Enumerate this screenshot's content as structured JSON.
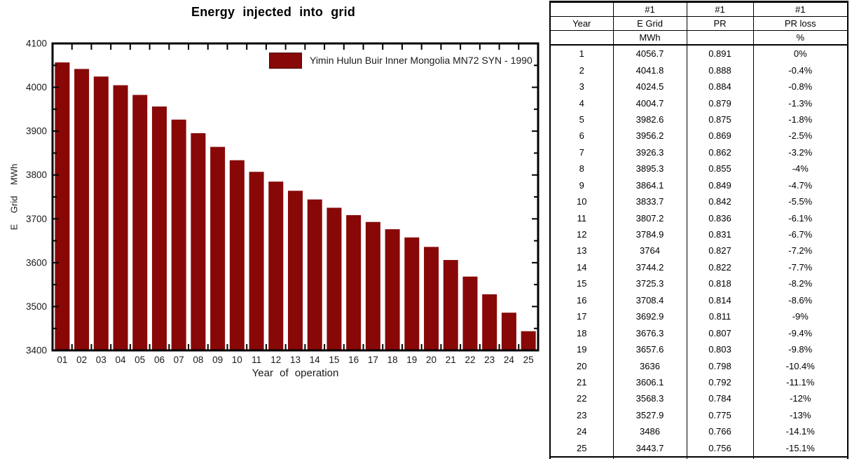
{
  "chart_data": {
    "type": "bar",
    "title": "Energy injected into grid",
    "xlabel": "Year of operation",
    "ylabel": "E Grid MWh",
    "ylim": [
      3400,
      4100
    ],
    "y_major_step": 100,
    "y_minor_step": 50,
    "grid": false,
    "legend_position": "top-inside",
    "bar_color": "#880808",
    "series_name": "Yimin Hulun Buir Inner Mongolia MN72 SYN - 1990",
    "categories": [
      "01",
      "02",
      "03",
      "04",
      "05",
      "06",
      "07",
      "08",
      "09",
      "10",
      "11",
      "12",
      "13",
      "14",
      "15",
      "16",
      "17",
      "18",
      "19",
      "20",
      "21",
      "22",
      "23",
      "24",
      "25"
    ],
    "values": [
      4056.7,
      4041.8,
      4024.5,
      4004.7,
      3982.6,
      3956.2,
      3926.3,
      3895.3,
      3864.1,
      3833.7,
      3807.2,
      3784.9,
      3764,
      3744.2,
      3725.3,
      3708.4,
      3692.9,
      3676.3,
      3657.6,
      3636,
      3606.1,
      3568.3,
      3527.9,
      3486,
      3443.7
    ]
  },
  "table": {
    "header_rows": [
      [
        "",
        "#1",
        "#1",
        "#1"
      ],
      [
        "Year",
        "E Grid",
        "PR",
        "PR loss"
      ],
      [
        "",
        "MWh",
        "",
        "%"
      ]
    ],
    "rows": [
      [
        "1",
        "4056.7",
        "0.891",
        "0%"
      ],
      [
        "2",
        "4041.8",
        "0.888",
        "-0.4%"
      ],
      [
        "3",
        "4024.5",
        "0.884",
        "-0.8%"
      ],
      [
        "4",
        "4004.7",
        "0.879",
        "-1.3%"
      ],
      [
        "5",
        "3982.6",
        "0.875",
        "-1.8%"
      ],
      [
        "6",
        "3956.2",
        "0.869",
        "-2.5%"
      ],
      [
        "7",
        "3926.3",
        "0.862",
        "-3.2%"
      ],
      [
        "8",
        "3895.3",
        "0.855",
        "-4%"
      ],
      [
        "9",
        "3864.1",
        "0.849",
        "-4.7%"
      ],
      [
        "10",
        "3833.7",
        "0.842",
        "-5.5%"
      ],
      [
        "11",
        "3807.2",
        "0.836",
        "-6.1%"
      ],
      [
        "12",
        "3784.9",
        "0.831",
        "-6.7%"
      ],
      [
        "13",
        "3764",
        "0.827",
        "-7.2%"
      ],
      [
        "14",
        "3744.2",
        "0.822",
        "-7.7%"
      ],
      [
        "15",
        "3725.3",
        "0.818",
        "-8.2%"
      ],
      [
        "16",
        "3708.4",
        "0.814",
        "-8.6%"
      ],
      [
        "17",
        "3692.9",
        "0.811",
        "-9%"
      ],
      [
        "18",
        "3676.3",
        "0.807",
        "-9.4%"
      ],
      [
        "19",
        "3657.6",
        "0.803",
        "-9.8%"
      ],
      [
        "20",
        "3636",
        "0.798",
        "-10.4%"
      ],
      [
        "21",
        "3606.1",
        "0.792",
        "-11.1%"
      ],
      [
        "22",
        "3568.3",
        "0.784",
        "-12%"
      ],
      [
        "23",
        "3527.9",
        "0.775",
        "-13%"
      ],
      [
        "24",
        "3486",
        "0.766",
        "-14.1%"
      ],
      [
        "25",
        "3443.7",
        "0.756",
        "-15.1%"
      ]
    ]
  }
}
